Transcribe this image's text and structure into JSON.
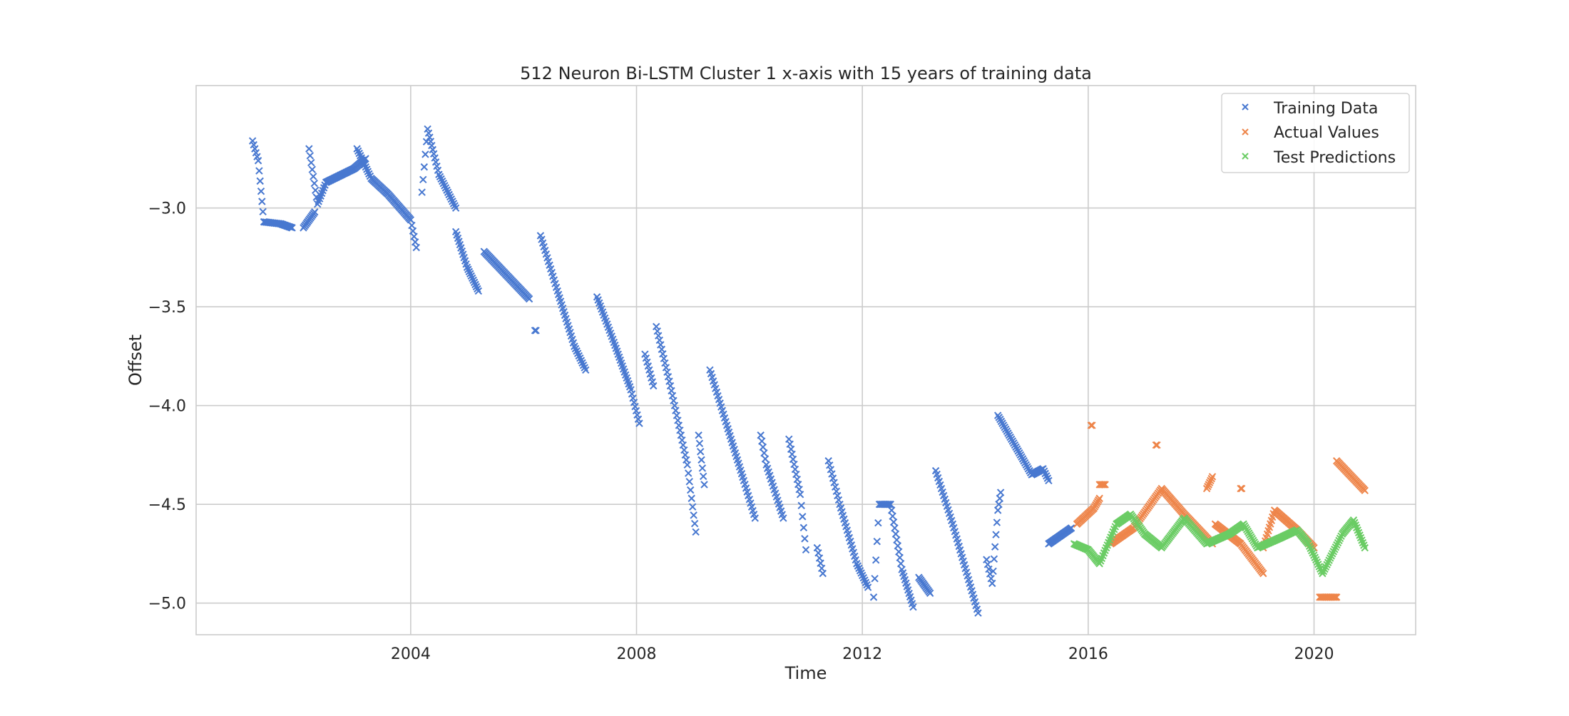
{
  "chart_data": {
    "type": "scatter",
    "title": "512 Neuron Bi-LSTM Cluster 1 x-axis with 15 years of training data",
    "xlabel": "Time",
    "ylabel": "Offset",
    "xlim": [
      2000.2,
      2021.8
    ],
    "ylim": [
      -5.16,
      -2.38
    ],
    "xticks": [
      2004,
      2008,
      2012,
      2016,
      2020
    ],
    "xtick_labels": [
      "2004",
      "2008",
      "2012",
      "2016",
      "2020"
    ],
    "yticks": [
      -3.0,
      -3.5,
      -4.0,
      -4.5,
      -5.0
    ],
    "ytick_labels": [
      "−3.0",
      "−3.5",
      "−4.0",
      "−4.5",
      "−5.0"
    ],
    "grid": true,
    "legend_position": "top-right",
    "marker": "x",
    "series": [
      {
        "name": "Training Data",
        "color": "#4878d0",
        "segments": [
          [
            [
              2001.2,
              -2.66
            ],
            [
              2001.3,
              -2.76
            ],
            [
              2001.4,
              -3.07
            ],
            [
              2001.7,
              -3.08
            ],
            [
              2001.9,
              -3.1
            ]
          ],
          [
            [
              2002.1,
              -3.1
            ],
            [
              2002.3,
              -3.02
            ]
          ],
          [
            [
              2002.2,
              -2.7
            ],
            [
              2002.35,
              -2.98
            ],
            [
              2002.5,
              -2.87
            ],
            [
              2003.0,
              -2.8
            ],
            [
              2003.2,
              -2.75
            ]
          ],
          [
            [
              2003.05,
              -2.7
            ],
            [
              2003.3,
              -2.85
            ],
            [
              2003.6,
              -2.93
            ],
            [
              2004.0,
              -3.06
            ],
            [
              2004.1,
              -3.2
            ]
          ],
          [
            [
              2004.2,
              -2.92
            ],
            [
              2004.3,
              -2.6
            ],
            [
              2004.5,
              -2.83
            ],
            [
              2004.8,
              -3.0
            ]
          ],
          [
            [
              2004.8,
              -3.12
            ],
            [
              2005.0,
              -3.3
            ],
            [
              2005.2,
              -3.42
            ]
          ],
          [
            [
              2005.3,
              -3.22
            ],
            [
              2005.8,
              -3.37
            ],
            [
              2006.1,
              -3.46
            ]
          ],
          [
            [
              2006.2,
              -3.62
            ]
          ],
          [
            [
              2006.3,
              -3.14
            ],
            [
              2006.6,
              -3.42
            ],
            [
              2006.9,
              -3.7
            ],
            [
              2007.1,
              -3.82
            ]
          ],
          [
            [
              2007.3,
              -3.45
            ],
            [
              2007.6,
              -3.68
            ],
            [
              2007.9,
              -3.92
            ],
            [
              2008.05,
              -4.09
            ]
          ],
          [
            [
              2008.15,
              -3.74
            ],
            [
              2008.3,
              -3.9
            ]
          ],
          [
            [
              2008.35,
              -3.6
            ],
            [
              2008.6,
              -3.9
            ],
            [
              2008.9,
              -4.3
            ],
            [
              2009.05,
              -4.64
            ]
          ],
          [
            [
              2009.1,
              -4.15
            ],
            [
              2009.2,
              -4.4
            ]
          ],
          [
            [
              2009.3,
              -3.82
            ],
            [
              2009.6,
              -4.1
            ],
            [
              2009.9,
              -4.38
            ],
            [
              2010.1,
              -4.57
            ]
          ],
          [
            [
              2010.2,
              -4.15
            ],
            [
              2010.3,
              -4.3
            ],
            [
              2010.6,
              -4.57
            ]
          ],
          [
            [
              2010.7,
              -4.17
            ],
            [
              2010.9,
              -4.45
            ],
            [
              2011.0,
              -4.73
            ]
          ],
          [
            [
              2011.2,
              -4.72
            ],
            [
              2011.3,
              -4.85
            ]
          ],
          [
            [
              2011.4,
              -4.28
            ],
            [
              2011.6,
              -4.5
            ],
            [
              2011.9,
              -4.8
            ],
            [
              2012.1,
              -4.92
            ]
          ],
          [
            [
              2012.2,
              -4.97
            ],
            [
              2012.3,
              -4.5
            ],
            [
              2012.5,
              -4.5
            ],
            [
              2012.7,
              -4.83
            ],
            [
              2012.9,
              -5.02
            ]
          ],
          [
            [
              2013.0,
              -4.87
            ],
            [
              2013.2,
              -4.95
            ]
          ],
          [
            [
              2013.3,
              -4.33
            ],
            [
              2013.6,
              -4.6
            ],
            [
              2013.9,
              -4.9
            ],
            [
              2014.05,
              -5.05
            ]
          ],
          [
            [
              2014.2,
              -4.78
            ],
            [
              2014.3,
              -4.9
            ],
            [
              2014.4,
              -4.53
            ],
            [
              2014.45,
              -4.44
            ]
          ],
          [
            [
              2014.4,
              -4.05
            ],
            [
              2014.7,
              -4.2
            ],
            [
              2015.0,
              -4.35
            ],
            [
              2015.2,
              -4.32
            ],
            [
              2015.3,
              -4.38
            ]
          ],
          [
            [
              2015.3,
              -4.7
            ],
            [
              2015.7,
              -4.62
            ]
          ]
        ]
      },
      {
        "name": "Actual Values",
        "color": "#ee854a",
        "segments": [
          [
            [
              2015.8,
              -4.6
            ],
            [
              2016.1,
              -4.52
            ],
            [
              2016.2,
              -4.47
            ]
          ],
          [
            [
              2016.05,
              -4.1
            ]
          ],
          [
            [
              2016.2,
              -4.4
            ],
            [
              2016.3,
              -4.4
            ]
          ],
          [
            [
              2016.4,
              -4.7
            ],
            [
              2016.8,
              -4.62
            ],
            [
              2017.3,
              -4.42
            ],
            [
              2017.7,
              -4.55
            ],
            [
              2018.2,
              -4.7
            ]
          ],
          [
            [
              2017.2,
              -4.2
            ]
          ],
          [
            [
              2018.1,
              -4.42
            ],
            [
              2018.2,
              -4.36
            ]
          ],
          [
            [
              2018.25,
              -4.6
            ],
            [
              2018.7,
              -4.7
            ],
            [
              2019.1,
              -4.85
            ]
          ],
          [
            [
              2018.7,
              -4.42
            ]
          ],
          [
            [
              2019.1,
              -4.72
            ],
            [
              2019.3,
              -4.53
            ],
            [
              2019.7,
              -4.63
            ],
            [
              2020.0,
              -4.72
            ]
          ],
          [
            [
              2020.1,
              -4.97
            ],
            [
              2020.4,
              -4.97
            ]
          ],
          [
            [
              2020.4,
              -4.28
            ],
            [
              2020.9,
              -4.43
            ]
          ]
        ]
      },
      {
        "name": "Test Predictions",
        "color": "#6acc64",
        "segments": [
          [
            [
              2015.75,
              -4.7
            ],
            [
              2016.0,
              -4.73
            ],
            [
              2016.2,
              -4.8
            ],
            [
              2016.5,
              -4.6
            ],
            [
              2016.75,
              -4.55
            ],
            [
              2017.0,
              -4.65
            ],
            [
              2017.3,
              -4.72
            ],
            [
              2017.7,
              -4.57
            ],
            [
              2018.1,
              -4.7
            ],
            [
              2018.5,
              -4.65
            ],
            [
              2018.75,
              -4.6
            ],
            [
              2019.0,
              -4.72
            ],
            [
              2019.4,
              -4.67
            ],
            [
              2019.7,
              -4.63
            ],
            [
              2019.9,
              -4.7
            ],
            [
              2020.15,
              -4.85
            ],
            [
              2020.5,
              -4.65
            ],
            [
              2020.7,
              -4.58
            ],
            [
              2020.9,
              -4.72
            ]
          ]
        ]
      }
    ]
  }
}
